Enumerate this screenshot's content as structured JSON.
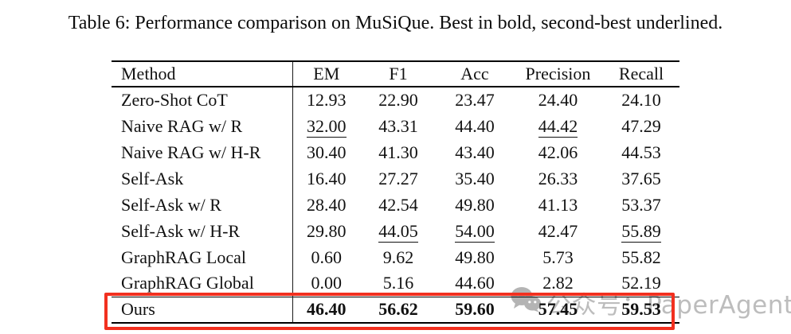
{
  "caption": "Table 6: Performance comparison on MuSiQue. Best in bold, second-best underlined.",
  "table": {
    "columns": [
      "Method",
      "EM",
      "F1",
      "Acc",
      "Precision",
      "Recall"
    ],
    "rows": [
      {
        "method": "Zero-Shot CoT",
        "values": [
          "12.93",
          "22.90",
          "23.47",
          "24.40",
          "24.10"
        ],
        "underline": [],
        "bold": false,
        "highlighted": false
      },
      {
        "method": "Naive RAG w/ R",
        "values": [
          "32.00",
          "43.31",
          "44.40",
          "44.42",
          "47.29"
        ],
        "underline": [
          0,
          3
        ],
        "bold": false,
        "highlighted": false
      },
      {
        "method": "Naive RAG w/ H-R",
        "values": [
          "30.40",
          "41.30",
          "43.40",
          "42.06",
          "44.53"
        ],
        "underline": [],
        "bold": false,
        "highlighted": false
      },
      {
        "method": "Self-Ask",
        "values": [
          "16.40",
          "27.27",
          "35.40",
          "26.33",
          "37.65"
        ],
        "underline": [],
        "bold": false,
        "highlighted": false
      },
      {
        "method": "Self-Ask w/ R",
        "values": [
          "28.40",
          "42.54",
          "49.80",
          "41.13",
          "53.37"
        ],
        "underline": [],
        "bold": false,
        "highlighted": false
      },
      {
        "method": "Self-Ask w/ H-R",
        "values": [
          "29.80",
          "44.05",
          "54.00",
          "42.47",
          "55.89"
        ],
        "underline": [
          1,
          2,
          4
        ],
        "bold": false,
        "highlighted": false
      },
      {
        "method": "GraphRAG Local",
        "values": [
          "0.60",
          "9.62",
          "49.80",
          "5.73",
          "55.82"
        ],
        "underline": [],
        "bold": false,
        "highlighted": false
      },
      {
        "method": "GraphRAG Global",
        "values": [
          "0.00",
          "5.16",
          "44.60",
          "2.82",
          "52.19"
        ],
        "underline": [],
        "bold": false,
        "highlighted": false
      },
      {
        "method": "Ours",
        "values": [
          "46.40",
          "56.62",
          "59.60",
          "57.45",
          "59.53"
        ],
        "underline": [],
        "bold": true,
        "highlighted": true
      }
    ]
  },
  "annotations": {
    "highlight_box_color": "#f2301f"
  },
  "watermark": {
    "icon": "wechat-icon",
    "text": "公众号：PaperAgent",
    "color": "#bdbdbd",
    "icon_color": "#a8a8a8"
  }
}
